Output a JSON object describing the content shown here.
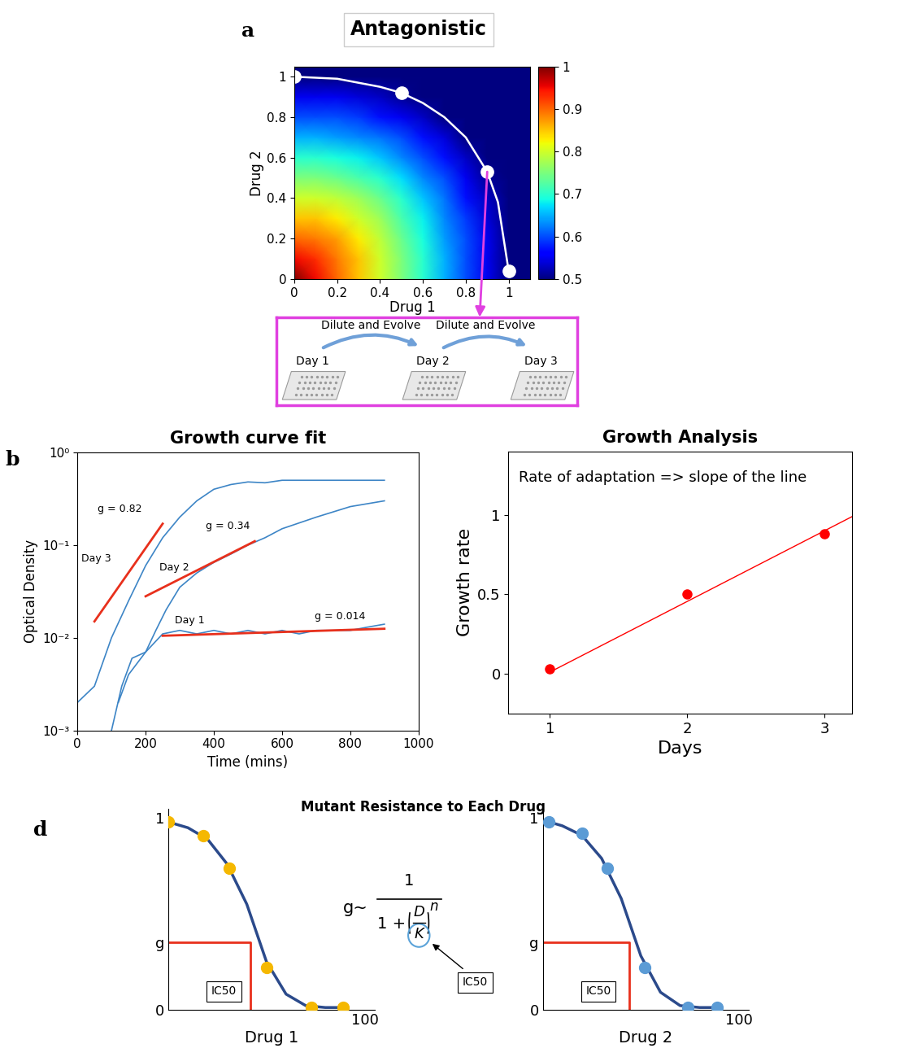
{
  "chart_data": [
    {
      "type": "heatmap",
      "title": "Antagonistic",
      "x_label": "Drug 1",
      "y_label": "Drug 2",
      "x": [
        0,
        0.1,
        0.2,
        0.3,
        0.4,
        0.5,
        0.6,
        0.7,
        0.8,
        0.9,
        1.0,
        1.1
      ],
      "y": [
        0,
        0.1,
        0.2,
        0.3,
        0.4,
        0.5,
        0.6,
        0.7,
        0.8,
        0.9,
        1.0,
        1.1
      ],
      "cells": [
        [
          1,
          0.95,
          0.9,
          0.85,
          0.8,
          0.75,
          0.7,
          0.65,
          0.6,
          0.55,
          0.5,
          0.5
        ],
        [
          0.95,
          0.93,
          0.89,
          0.85,
          0.8,
          0.75,
          0.7,
          0.65,
          0.6,
          0.55,
          0.5,
          0.5
        ],
        [
          0.9,
          0.89,
          0.87,
          0.83,
          0.79,
          0.74,
          0.69,
          0.64,
          0.6,
          0.55,
          0.5,
          0.5
        ],
        [
          0.85,
          0.85,
          0.83,
          0.8,
          0.77,
          0.72,
          0.68,
          0.63,
          0.59,
          0.54,
          0.5,
          0.5
        ],
        [
          0.8,
          0.8,
          0.79,
          0.77,
          0.74,
          0.7,
          0.66,
          0.62,
          0.57,
          0.53,
          0.5,
          0.5
        ],
        [
          0.75,
          0.75,
          0.74,
          0.72,
          0.7,
          0.67,
          0.63,
          0.6,
          0.55,
          0.51,
          0.5,
          0.5
        ],
        [
          0.7,
          0.7,
          0.69,
          0.68,
          0.66,
          0.63,
          0.6,
          0.57,
          0.53,
          0.5,
          0.5,
          0.5
        ],
        [
          0.65,
          0.65,
          0.64,
          0.63,
          0.62,
          0.6,
          0.57,
          0.54,
          0.5,
          0.5,
          0.5,
          0.5
        ],
        [
          0.6,
          0.6,
          0.6,
          0.59,
          0.57,
          0.55,
          0.53,
          0.5,
          0.5,
          0.5,
          0.5,
          0.5
        ],
        [
          0.55,
          0.55,
          0.55,
          0.54,
          0.53,
          0.51,
          0.5,
          0.5,
          0.5,
          0.5,
          0.5,
          0.5
        ],
        [
          0.5,
          0.5,
          0.5,
          0.5,
          0.5,
          0.5,
          0.5,
          0.5,
          0.5,
          0.5,
          0.5,
          0.5
        ],
        [
          0.5,
          0.5,
          0.5,
          0.5,
          0.5,
          0.5,
          0.5,
          0.5,
          0.5,
          0.5,
          0.5,
          0.5
        ]
      ],
      "xlim": [
        0,
        1.1
      ],
      "ylim": [
        0,
        1.05
      ],
      "xticks": [
        0,
        0.2,
        0.4,
        0.6,
        0.8,
        1
      ],
      "yticks": [
        0,
        0.2,
        0.4,
        0.6,
        0.8,
        1
      ],
      "colorbar": {
        "range": [
          0.5,
          1
        ],
        "ticks": [
          0.5,
          0.6,
          0.7,
          0.8,
          0.9,
          1
        ]
      },
      "isobole": {
        "color": "#ffffff",
        "x": [
          0,
          0.2,
          0.4,
          0.5,
          0.6,
          0.7,
          0.8,
          0.9,
          0.95,
          1.0
        ],
        "values": [
          1,
          0.99,
          0.95,
          0.92,
          0.87,
          0.8,
          0.7,
          0.53,
          0.38,
          0.04
        ]
      },
      "points": {
        "color": "#ffffff",
        "x": [
          0,
          0.5,
          0.9,
          1.0
        ],
        "values": [
          1,
          0.92,
          0.53,
          0.04
        ]
      }
    },
    {
      "type": "line",
      "title": "Growth curve fit",
      "x_label": "Time (mins)",
      "y_label": "Optical Density",
      "log": "y",
      "xlim": [
        0,
        1000
      ],
      "ylim": [
        0.001,
        1
      ],
      "xticks": [
        0,
        200,
        400,
        600,
        800,
        1000
      ],
      "yticks": [
        {
          "value": 0.001,
          "label": "10⁻³"
        },
        {
          "value": 0.01,
          "label": "10⁻²"
        },
        {
          "value": 0.1,
          "label": "10⁻¹"
        },
        {
          "value": 1,
          "label": "10⁰"
        }
      ],
      "series": [
        {
          "name": "Day 1",
          "color": "#3d85c6",
          "x": [
            120,
            150,
            200,
            250,
            300,
            350,
            400,
            450,
            500,
            550,
            600,
            650,
            700,
            800,
            850,
            900
          ],
          "values": [
            0.002,
            0.004,
            0.007,
            0.011,
            0.012,
            0.011,
            0.012,
            0.011,
            0.012,
            0.011,
            0.012,
            0.011,
            0.012,
            0.012,
            0.013,
            0.014
          ],
          "fit": {
            "label": "g = 0.014",
            "color": "#e8301c",
            "x": [
              250,
              900
            ],
            "values": [
              0.0105,
              0.0125
            ]
          }
        },
        {
          "name": "Day 2",
          "color": "#3d85c6",
          "x": [
            100,
            130,
            160,
            200,
            230,
            260,
            300,
            350,
            400,
            450,
            500,
            550,
            600,
            700,
            800,
            900
          ],
          "values": [
            0.001,
            0.003,
            0.006,
            0.007,
            0.012,
            0.02,
            0.035,
            0.05,
            0.065,
            0.08,
            0.1,
            0.12,
            0.15,
            0.2,
            0.26,
            0.3
          ],
          "fit": {
            "label": "g = 0.34",
            "color": "#e8301c",
            "x": [
              200,
              520
            ],
            "values": [
              0.028,
              0.11
            ]
          }
        },
        {
          "name": "Day 3",
          "color": "#3d85c6",
          "x": [
            0,
            50,
            100,
            150,
            200,
            250,
            300,
            350,
            400,
            450,
            500,
            550,
            600,
            700,
            800,
            900
          ],
          "values": [
            0.002,
            0.003,
            0.01,
            0.025,
            0.06,
            0.12,
            0.2,
            0.3,
            0.4,
            0.45,
            0.48,
            0.47,
            0.5,
            0.5,
            0.5,
            0.5
          ],
          "fit": {
            "label": "g = 0.82",
            "color": "#e8301c",
            "x": [
              50,
              250
            ],
            "values": [
              0.015,
              0.17
            ]
          }
        }
      ]
    },
    {
      "type": "scatter",
      "title": "Growth Analysis",
      "x_label": "Days",
      "y_label": "Growth rate",
      "annotation": "Rate of adaptation => slope of the line",
      "xlim": [
        0.7,
        3.2
      ],
      "ylim": [
        -0.25,
        1.4
      ],
      "xticks": [
        1,
        2,
        3
      ],
      "yticks": [
        0,
        0.5,
        1
      ],
      "x": [
        1,
        2,
        3
      ],
      "values": [
        0.03,
        0.5,
        0.88
      ],
      "color": "#ff0000",
      "fit": {
        "color": "#ff0000",
        "x": [
          1,
          3.2
        ],
        "values": [
          0.01,
          0.99
        ]
      }
    },
    {
      "type": "line",
      "x_label": "Drug 1",
      "xlim": [
        0,
        105
      ],
      "ylim": [
        0,
        1.05
      ],
      "xticks": [
        100
      ],
      "yticks": [
        0,
        {
          "value": 0.35,
          "label": "g"
        },
        1
      ],
      "curve": {
        "color": "#2b4a8b",
        "x": [
          0,
          10,
          20,
          30,
          40,
          50,
          60,
          70,
          80,
          90
        ],
        "values": [
          0.98,
          0.95,
          0.89,
          0.76,
          0.55,
          0.25,
          0.08,
          0.02,
          0.01,
          0.01
        ]
      },
      "points": {
        "color": "#f5b800",
        "x": [
          0,
          18,
          31,
          50,
          73,
          89
        ],
        "values": [
          0.98,
          0.91,
          0.74,
          0.22,
          0.01,
          0.01
        ]
      },
      "ic50": {
        "label": "IC50",
        "x": 42,
        "g": 0.35,
        "color": "#e8301c"
      }
    },
    {
      "type": "line",
      "x_label": "Drug 2",
      "xlim": [
        0,
        105
      ],
      "ylim": [
        0,
        1.05
      ],
      "xticks": [
        100
      ],
      "yticks": [
        0,
        {
          "value": 0.35,
          "label": "g"
        },
        1
      ],
      "curve": {
        "color": "#2b4a8b",
        "x": [
          0,
          10,
          20,
          30,
          40,
          50,
          60,
          70,
          80,
          90
        ],
        "values": [
          0.99,
          0.96,
          0.91,
          0.79,
          0.58,
          0.28,
          0.09,
          0.02,
          0.01,
          0.01
        ]
      },
      "points": {
        "color": "#5b9bd5",
        "x": [
          3,
          20,
          33,
          52,
          74,
          89
        ],
        "values": [
          0.98,
          0.92,
          0.74,
          0.22,
          0.01,
          0.01
        ]
      },
      "ic50": {
        "label": "IC50",
        "x": 44,
        "g": 0.35,
        "color": "#e8301c"
      }
    }
  ],
  "panel_labels": [
    "a",
    "b",
    "d"
  ],
  "protocol": {
    "steps": [
      "Dilute and Evolve",
      "Dilute and Evolve"
    ],
    "days": [
      "Day 1",
      "Day 2",
      "Day 3"
    ],
    "color": "#e040e0"
  },
  "section_title": "Mutant Resistance to Each Drug",
  "equation": {
    "lhs": "g~",
    "numerator": "1",
    "denominator_lead": "1 +",
    "inner_numerator": "D",
    "inner_denominator": "K",
    "exponent": "n",
    "annotation": "IC50"
  }
}
